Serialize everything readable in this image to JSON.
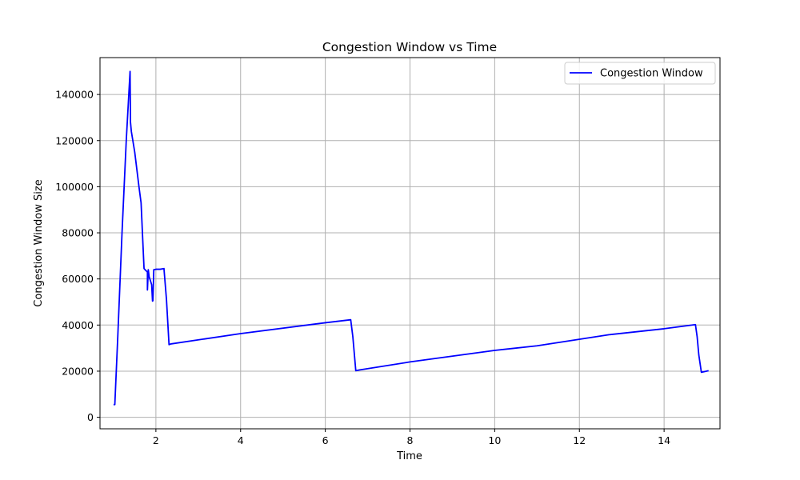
{
  "chart_data": {
    "type": "line",
    "title": "Congestion Window vs Time",
    "xlabel": "Time",
    "ylabel": "Congestion Window Size",
    "xlim": [
      0.68,
      15.32
    ],
    "ylim": [
      -5000,
      156000
    ],
    "xticks": [
      2,
      4,
      6,
      8,
      10,
      12,
      14
    ],
    "yticks": [
      0,
      20000,
      40000,
      60000,
      80000,
      100000,
      120000,
      140000
    ],
    "grid": true,
    "legend_position": "top-right",
    "series": [
      {
        "name": "Congestion Window",
        "color": "#0000ff",
        "x": [
          1.0,
          1.03,
          1.1,
          1.2,
          1.3,
          1.36,
          1.39,
          1.4,
          1.42,
          1.5,
          1.6,
          1.65,
          1.72,
          1.76,
          1.8,
          1.8,
          1.82,
          1.84,
          1.9,
          1.92,
          1.93,
          1.95,
          2.0,
          2.1,
          2.19,
          2.25,
          2.31,
          2.35,
          4.0,
          6.0,
          6.6,
          6.65,
          6.72,
          6.8,
          8.0,
          10.0,
          11.0,
          12.7,
          14.0,
          14.74,
          14.78,
          14.82,
          14.88,
          15.05
        ],
        "y": [
          5500,
          5500,
          35000,
          80000,
          120000,
          140000,
          150000,
          128000,
          124000,
          115000,
          100000,
          93000,
          64500,
          63700,
          63000,
          55200,
          64000,
          61000,
          57500,
          50400,
          50600,
          64000,
          64200,
          64200,
          64500,
          51000,
          31500,
          31800,
          36300,
          41000,
          42300,
          35000,
          20200,
          20500,
          24000,
          29000,
          31000,
          35800,
          38400,
          40200,
          35000,
          27000,
          19500,
          20200
        ]
      }
    ]
  }
}
